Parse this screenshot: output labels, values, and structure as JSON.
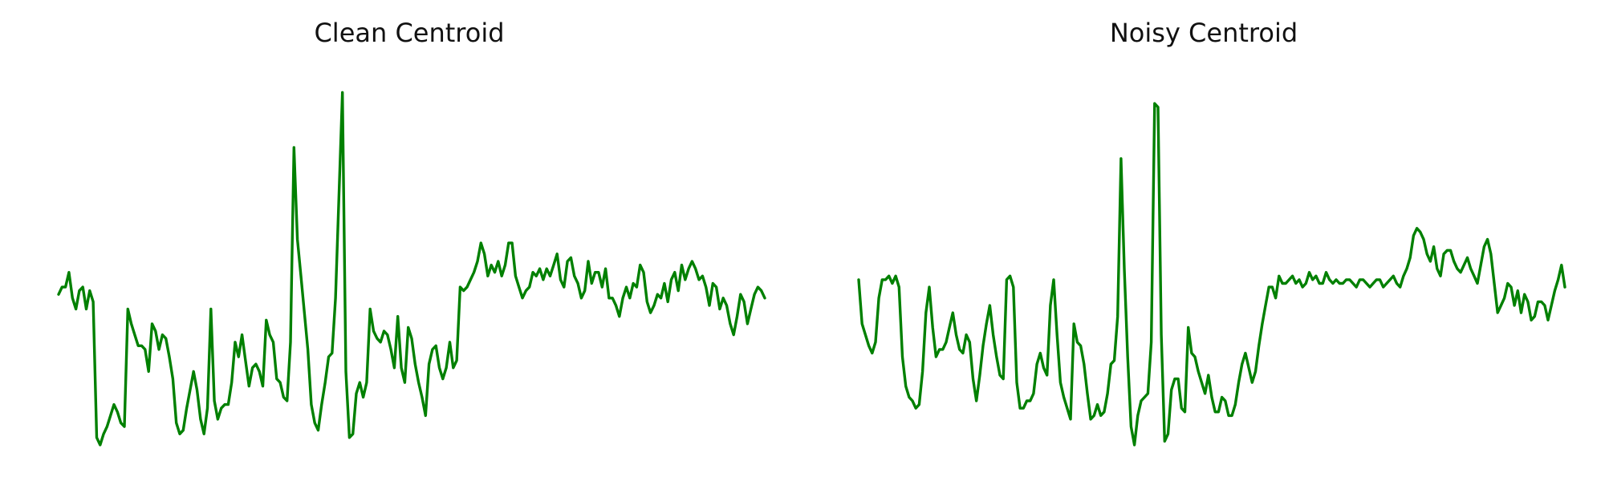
{
  "line_color": "#008000",
  "chart_data": [
    {
      "type": "line",
      "title": "Clean Centroid",
      "xlabel": "",
      "ylabel": "",
      "axes_visible": false,
      "grid": false,
      "series": [
        {
          "values": [
            0.41,
            0.43,
            0.43,
            0.47,
            0.4,
            0.37,
            0.42,
            0.43,
            0.37,
            0.42,
            0.39,
            0.02,
            0.0,
            0.03,
            0.05,
            0.08,
            0.11,
            0.09,
            0.06,
            0.05,
            0.37,
            0.33,
            0.3,
            0.27,
            0.27,
            0.26,
            0.2,
            0.33,
            0.31,
            0.26,
            0.3,
            0.29,
            0.24,
            0.18,
            0.06,
            0.03,
            0.04,
            0.1,
            0.15,
            0.2,
            0.15,
            0.07,
            0.03,
            0.1,
            0.37,
            0.12,
            0.07,
            0.1,
            0.11,
            0.11,
            0.17,
            0.28,
            0.24,
            0.3,
            0.23,
            0.16,
            0.21,
            0.22,
            0.2,
            0.16,
            0.34,
            0.3,
            0.28,
            0.18,
            0.17,
            0.13,
            0.12,
            0.28,
            0.81,
            0.56,
            0.46,
            0.36,
            0.26,
            0.11,
            0.06,
            0.04,
            0.11,
            0.17,
            0.24,
            0.25,
            0.4,
            0.68,
            0.96,
            0.2,
            0.02,
            0.03,
            0.14,
            0.17,
            0.13,
            0.17,
            0.37,
            0.31,
            0.29,
            0.28,
            0.31,
            0.3,
            0.26,
            0.21,
            0.35,
            0.21,
            0.17,
            0.32,
            0.29,
            0.22,
            0.17,
            0.13,
            0.08,
            0.22,
            0.26,
            0.27,
            0.21,
            0.18,
            0.21,
            0.28,
            0.21,
            0.23,
            0.43,
            0.42,
            0.43,
            0.45,
            0.47,
            0.5,
            0.55,
            0.52,
            0.46,
            0.49,
            0.47,
            0.5,
            0.46,
            0.49,
            0.55,
            0.55,
            0.46,
            0.43,
            0.4,
            0.42,
            0.43,
            0.47,
            0.46,
            0.48,
            0.45,
            0.48,
            0.46,
            0.49,
            0.52,
            0.45,
            0.43,
            0.5,
            0.51,
            0.46,
            0.44,
            0.4,
            0.42,
            0.5,
            0.44,
            0.47,
            0.47,
            0.43,
            0.48,
            0.4,
            0.4,
            0.38,
            0.35,
            0.4,
            0.43,
            0.4,
            0.44,
            0.43,
            0.49,
            0.47,
            0.39,
            0.36,
            0.38,
            0.41,
            0.4,
            0.44,
            0.39,
            0.45,
            0.47,
            0.42,
            0.49,
            0.45,
            0.48,
            0.5,
            0.48,
            0.45,
            0.46,
            0.43,
            0.38,
            0.44,
            0.43,
            0.37,
            0.4,
            0.38,
            0.33,
            0.3,
            0.35,
            0.41,
            0.39,
            0.33,
            0.37,
            0.41,
            0.43,
            0.42,
            0.4
          ]
        }
      ]
    },
    {
      "type": "line",
      "title": "Noisy Centroid",
      "xlabel": "",
      "ylabel": "",
      "axes_visible": false,
      "grid": false,
      "series": [
        {
          "values": [
            0.45,
            0.33,
            0.3,
            0.27,
            0.25,
            0.28,
            0.4,
            0.45,
            0.45,
            0.46,
            0.44,
            0.46,
            0.43,
            0.24,
            0.16,
            0.13,
            0.12,
            0.1,
            0.11,
            0.2,
            0.36,
            0.43,
            0.32,
            0.24,
            0.26,
            0.26,
            0.28,
            0.32,
            0.36,
            0.3,
            0.26,
            0.25,
            0.3,
            0.28,
            0.18,
            0.12,
            0.19,
            0.27,
            0.33,
            0.38,
            0.3,
            0.24,
            0.19,
            0.18,
            0.45,
            0.46,
            0.43,
            0.17,
            0.1,
            0.1,
            0.12,
            0.12,
            0.14,
            0.22,
            0.25,
            0.21,
            0.19,
            0.38,
            0.45,
            0.3,
            0.17,
            0.13,
            0.1,
            0.07,
            0.33,
            0.28,
            0.27,
            0.22,
            0.14,
            0.07,
            0.08,
            0.11,
            0.08,
            0.09,
            0.14,
            0.22,
            0.23,
            0.35,
            0.78,
            0.48,
            0.24,
            0.05,
            0.0,
            0.08,
            0.12,
            0.13,
            0.14,
            0.28,
            0.93,
            0.92,
            0.3,
            0.01,
            0.03,
            0.15,
            0.18,
            0.18,
            0.1,
            0.09,
            0.32,
            0.25,
            0.24,
            0.2,
            0.17,
            0.14,
            0.19,
            0.13,
            0.09,
            0.09,
            0.13,
            0.12,
            0.08,
            0.08,
            0.11,
            0.17,
            0.22,
            0.25,
            0.21,
            0.17,
            0.2,
            0.27,
            0.33,
            0.38,
            0.43,
            0.43,
            0.4,
            0.46,
            0.44,
            0.44,
            0.45,
            0.46,
            0.44,
            0.45,
            0.43,
            0.44,
            0.47,
            0.45,
            0.46,
            0.44,
            0.44,
            0.47,
            0.45,
            0.44,
            0.45,
            0.44,
            0.44,
            0.45,
            0.45,
            0.44,
            0.43,
            0.45,
            0.45,
            0.44,
            0.43,
            0.44,
            0.45,
            0.45,
            0.43,
            0.44,
            0.45,
            0.46,
            0.44,
            0.43,
            0.46,
            0.48,
            0.51,
            0.57,
            0.59,
            0.58,
            0.56,
            0.52,
            0.5,
            0.54,
            0.48,
            0.46,
            0.52,
            0.53,
            0.53,
            0.5,
            0.48,
            0.47,
            0.49,
            0.51,
            0.48,
            0.46,
            0.44,
            0.49,
            0.54,
            0.56,
            0.52,
            0.44,
            0.36,
            0.38,
            0.4,
            0.44,
            0.43,
            0.38,
            0.42,
            0.36,
            0.41,
            0.39,
            0.34,
            0.35,
            0.39,
            0.39,
            0.38,
            0.34,
            0.38,
            0.42,
            0.45,
            0.49,
            0.43
          ]
        }
      ]
    }
  ]
}
